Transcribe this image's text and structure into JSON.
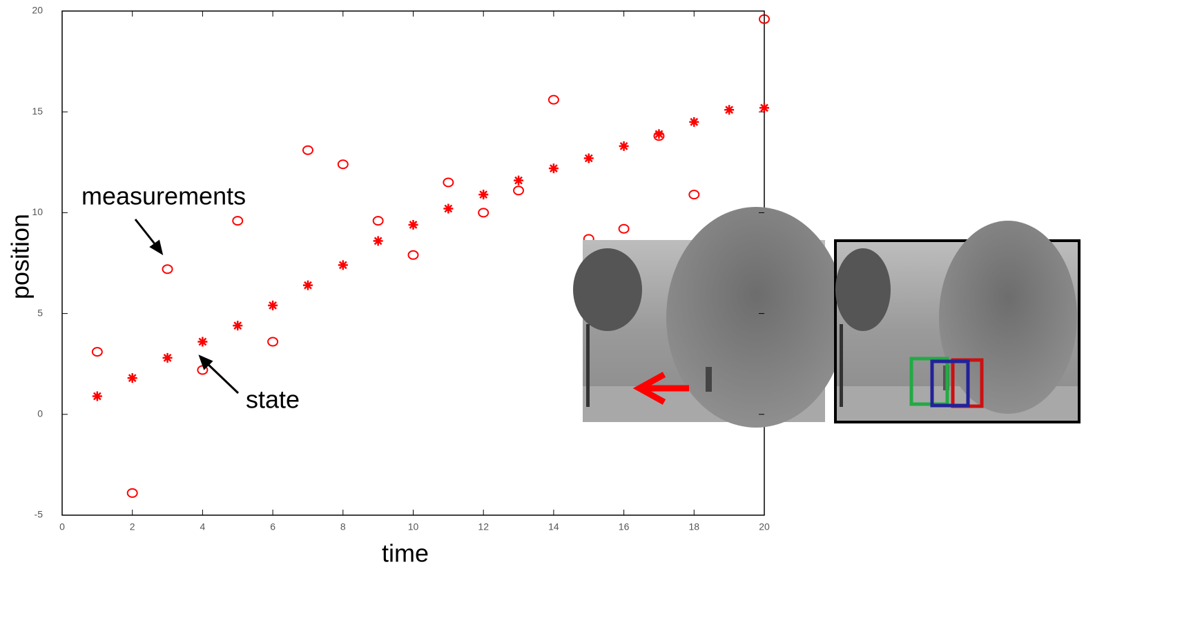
{
  "chart_data": {
    "type": "scatter",
    "x_label": "time",
    "y_label": "position",
    "annotations": [
      "measurements",
      "state"
    ],
    "x": [
      1,
      2,
      3,
      4,
      5,
      6,
      7,
      8,
      9,
      10,
      11,
      12,
      13,
      14,
      15,
      16,
      17,
      18,
      19,
      20
    ],
    "series": [
      {
        "name": "measurements",
        "marker": "circle",
        "color": "#ff0000",
        "values": [
          3.1,
          -3.9,
          7.2,
          2.2,
          9.6,
          3.6,
          13.1,
          12.4,
          9.6,
          7.9,
          11.5,
          10.0,
          11.1,
          15.6,
          8.7,
          9.2,
          13.8,
          10.9,
          null,
          19.6
        ]
      },
      {
        "name": "state",
        "marker": "star",
        "color": "#ff0000",
        "values": [
          0.9,
          1.8,
          2.8,
          3.6,
          4.4,
          5.4,
          6.4,
          7.4,
          8.6,
          9.4,
          10.2,
          10.9,
          11.6,
          12.2,
          12.7,
          13.3,
          13.9,
          14.5,
          15.1,
          15.2
        ]
      }
    ],
    "xlim": [
      0,
      20
    ],
    "xticks": [
      0,
      2,
      4,
      6,
      8,
      10,
      12,
      14,
      16,
      18,
      20
    ],
    "ylim": [
      -5,
      20
    ],
    "yticks": [
      -5,
      0,
      5,
      10,
      15,
      20
    ],
    "grid": false
  }
}
